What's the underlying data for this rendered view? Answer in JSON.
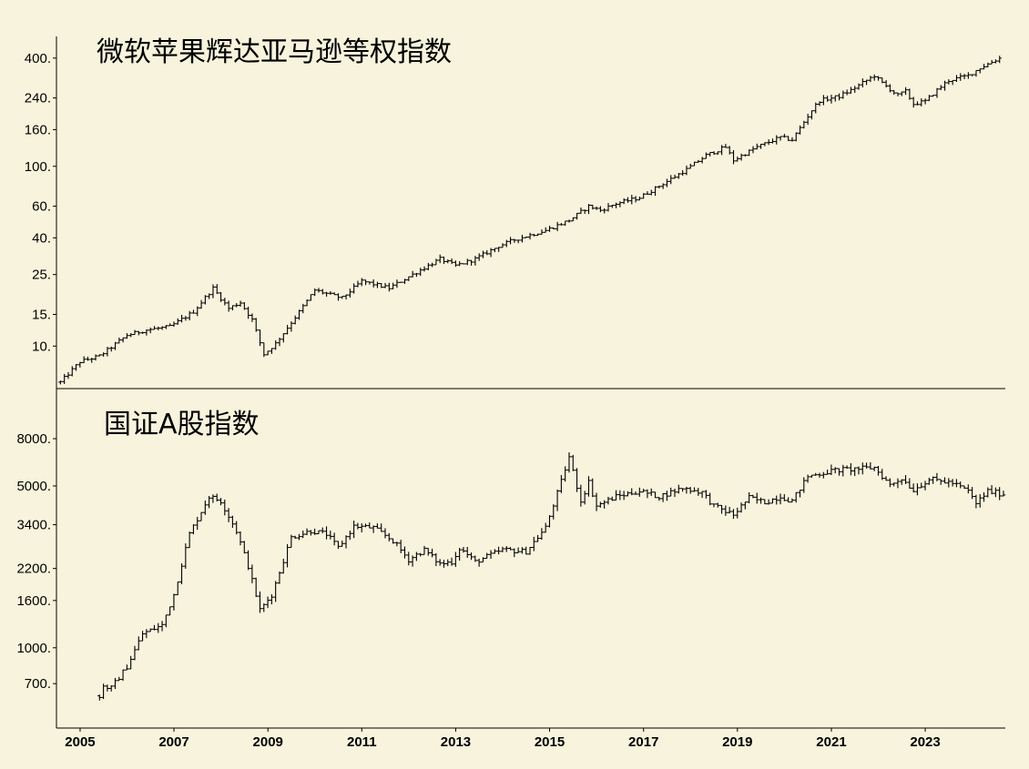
{
  "background": "#f7f3dc",
  "line_color": "#000000",
  "chart_data": {
    "type": "ohlc-bar",
    "x_axis": {
      "type": "date",
      "range": [
        "2004-07-01",
        "2024-09-15"
      ],
      "tick_labels": [
        "2005",
        "2007",
        "2009",
        "2011",
        "2013",
        "2015",
        "2017",
        "2019",
        "2021",
        "2023"
      ],
      "tick_values": [
        "2005-01-01",
        "2007-01-01",
        "2009-01-01",
        "2011-01-01",
        "2013-01-01",
        "2015-01-01",
        "2017-01-01",
        "2019-01-01",
        "2021-01-01",
        "2023-01-01"
      ]
    },
    "panels": [
      {
        "title": "微软苹果辉达亚马逊等权指数",
        "y_scale": "log",
        "ylim": [
          5.8,
          470
        ],
        "y_ticks": [
          10,
          15,
          25,
          40,
          60,
          100,
          160,
          240,
          400
        ],
        "y_tick_labels": [
          "10.",
          "15.",
          "25.",
          "40.",
          "60.",
          "100.",
          "160.",
          "240.",
          "400."
        ],
        "grid": false,
        "anchors": [
          [
            "2004-08-01",
            6.3
          ],
          [
            "2005-01-01",
            8.2
          ],
          [
            "2005-06-01",
            8.8
          ],
          [
            "2006-01-01",
            11.5
          ],
          [
            "2006-06-01",
            12.3
          ],
          [
            "2006-12-01",
            12.8
          ],
          [
            "2007-06-01",
            15.5
          ],
          [
            "2007-11-01",
            21.0
          ],
          [
            "2008-03-01",
            16.2
          ],
          [
            "2008-06-01",
            17.5
          ],
          [
            "2008-09-01",
            14.0
          ],
          [
            "2008-12-01",
            9.0
          ],
          [
            "2009-03-01",
            10.3
          ],
          [
            "2009-09-01",
            15.5
          ],
          [
            "2010-01-01",
            20.5
          ],
          [
            "2010-06-01",
            19.0
          ],
          [
            "2010-08-01",
            18.5
          ],
          [
            "2011-01-01",
            23.0
          ],
          [
            "2011-08-01",
            21.0
          ],
          [
            "2012-04-01",
            26.5
          ],
          [
            "2012-09-01",
            30.5
          ],
          [
            "2013-01-01",
            28.0
          ],
          [
            "2013-06-01",
            30.5
          ],
          [
            "2013-12-01",
            36.0
          ],
          [
            "2014-04-01",
            39.0
          ],
          [
            "2014-12-01",
            44.0
          ],
          [
            "2015-06-01",
            50.0
          ],
          [
            "2015-11-01",
            60.0
          ],
          [
            "2016-02-01",
            57.0
          ],
          [
            "2016-06-01",
            62.0
          ],
          [
            "2016-12-01",
            67.0
          ],
          [
            "2017-06-01",
            80.0
          ],
          [
            "2017-12-01",
            96.0
          ],
          [
            "2018-05-01",
            115.0
          ],
          [
            "2018-10-01",
            128.0
          ],
          [
            "2018-12-01",
            108.0
          ],
          [
            "2019-06-01",
            128.0
          ],
          [
            "2019-12-01",
            145.0
          ],
          [
            "2020-03-01",
            140.0
          ],
          [
            "2020-08-01",
            205.0
          ],
          [
            "2020-10-01",
            232.0
          ],
          [
            "2021-03-01",
            245.0
          ],
          [
            "2021-06-01",
            265.0
          ],
          [
            "2021-12-01",
            320.0
          ],
          [
            "2022-02-01",
            290.0
          ],
          [
            "2022-06-01",
            248.0
          ],
          [
            "2022-08-01",
            262.0
          ],
          [
            "2022-10-01",
            222.0
          ],
          [
            "2023-01-01",
            230.0
          ],
          [
            "2023-04-01",
            265.0
          ],
          [
            "2023-07-01",
            300.0
          ],
          [
            "2023-12-01",
            320.0
          ],
          [
            "2024-03-01",
            352.0
          ],
          [
            "2024-09-01",
            410.0
          ]
        ]
      },
      {
        "title": "国证A股指数",
        "y_scale": "log",
        "ylim": [
          450,
          10500
        ],
        "y_ticks": [
          700,
          1000,
          1600,
          2200,
          3400,
          5000,
          8000
        ],
        "y_tick_labels": [
          "700.",
          "1000.",
          "1600.",
          "2200.",
          "3400.",
          "5000.",
          "8000."
        ],
        "grid": false,
        "anchors": [
          [
            "2005-06-01",
            620
          ],
          [
            "2005-07-01",
            680
          ],
          [
            "2005-09-01",
            670
          ],
          [
            "2006-01-01",
            830
          ],
          [
            "2006-05-01",
            1150
          ],
          [
            "2006-10-01",
            1250
          ],
          [
            "2007-01-01",
            1700
          ],
          [
            "2007-05-01",
            3100
          ],
          [
            "2007-10-01",
            4500
          ],
          [
            "2008-01-01",
            4300
          ],
          [
            "2008-05-01",
            3200
          ],
          [
            "2008-08-01",
            2250
          ],
          [
            "2008-11-01",
            1450
          ],
          [
            "2009-02-01",
            1700
          ],
          [
            "2009-07-01",
            3000
          ],
          [
            "2009-12-01",
            3200
          ],
          [
            "2010-04-01",
            3100
          ],
          [
            "2010-07-01",
            2700
          ],
          [
            "2010-11-01",
            3350
          ],
          [
            "2011-04-01",
            3300
          ],
          [
            "2011-09-01",
            2900
          ],
          [
            "2012-01-01",
            2400
          ],
          [
            "2012-05-01",
            2650
          ],
          [
            "2012-09-01",
            2300
          ],
          [
            "2012-12-01",
            2350
          ],
          [
            "2013-02-01",
            2700
          ],
          [
            "2013-06-01",
            2350
          ],
          [
            "2014-01-01",
            2650
          ],
          [
            "2014-07-01",
            2600
          ],
          [
            "2014-12-01",
            3300
          ],
          [
            "2015-04-01",
            5200
          ],
          [
            "2015-06-01",
            6700
          ],
          [
            "2015-09-01",
            4300
          ],
          [
            "2015-11-01",
            5200
          ],
          [
            "2016-01-01",
            4100
          ],
          [
            "2016-06-01",
            4500
          ],
          [
            "2016-12-01",
            4750
          ],
          [
            "2017-05-01",
            4500
          ],
          [
            "2017-11-01",
            4900
          ],
          [
            "2018-04-01",
            4700
          ],
          [
            "2018-07-01",
            4100
          ],
          [
            "2018-12-01",
            3750
          ],
          [
            "2019-04-01",
            4450
          ],
          [
            "2019-08-01",
            4250
          ],
          [
            "2019-12-01",
            4500
          ],
          [
            "2020-03-01",
            4300
          ],
          [
            "2020-07-01",
            5500
          ],
          [
            "2021-02-01",
            5850
          ],
          [
            "2021-09-01",
            5950
          ],
          [
            "2021-12-01",
            6000
          ],
          [
            "2022-04-01",
            5050
          ],
          [
            "2022-07-01",
            5400
          ],
          [
            "2022-10-01",
            4800
          ],
          [
            "2023-02-01",
            5350
          ],
          [
            "2023-08-01",
            5150
          ],
          [
            "2023-12-01",
            4750
          ],
          [
            "2024-02-01",
            4200
          ],
          [
            "2024-05-01",
            4750
          ],
          [
            "2024-09-01",
            4600
          ]
        ]
      }
    ]
  }
}
